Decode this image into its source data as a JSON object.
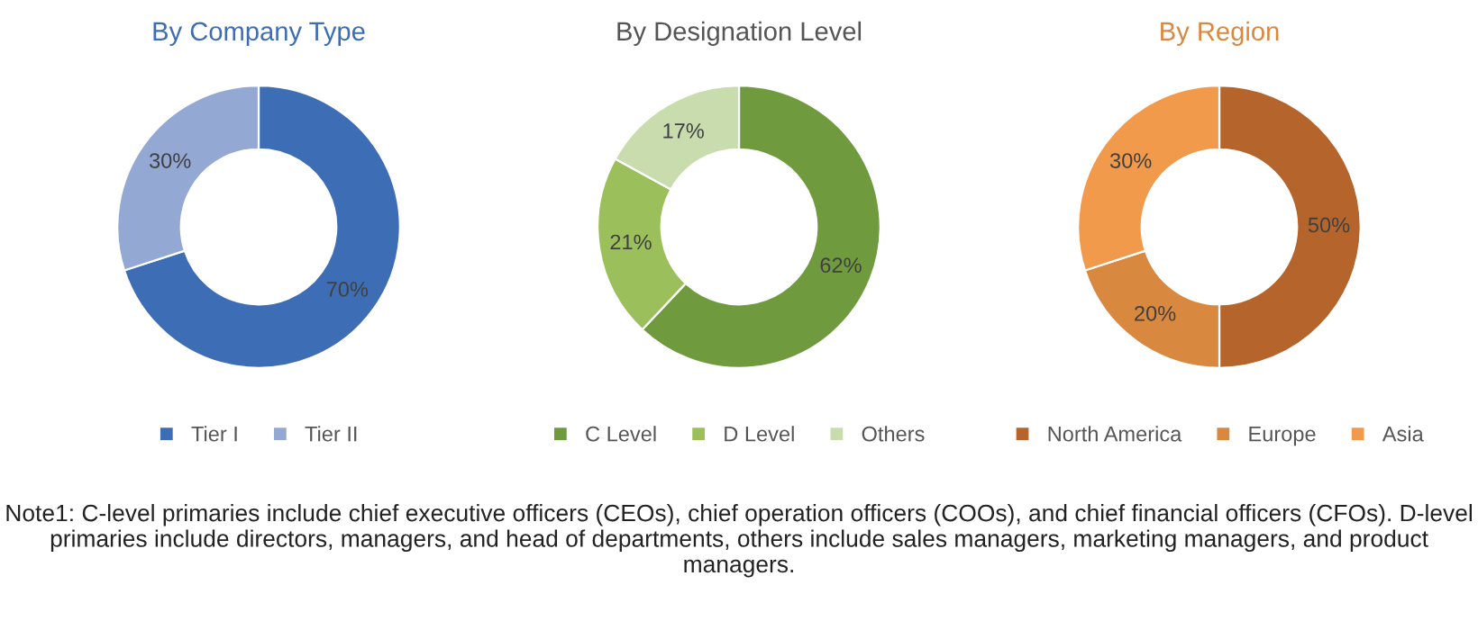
{
  "chart_data": [
    {
      "type": "donut",
      "title": "By Company Type",
      "categories": [
        "Tier I",
        "Tier II"
      ],
      "values": [
        70,
        30
      ],
      "colors": [
        "#3d6db5",
        "#93a9d3"
      ],
      "value_labels": [
        "70%",
        "30%"
      ],
      "legend": "bottom"
    },
    {
      "type": "donut",
      "title": "By Designation Level",
      "categories": [
        "C Level",
        "D Level",
        "Others"
      ],
      "values": [
        62,
        21,
        17
      ],
      "colors": [
        "#6f9a3e",
        "#9bbf5a",
        "#c8dcae"
      ],
      "value_labels": [
        "62%",
        "21%",
        "17%"
      ],
      "legend": "bottom"
    },
    {
      "type": "donut",
      "title": "By Region",
      "categories": [
        "North America",
        "Europe",
        "Asia"
      ],
      "values": [
        50,
        20,
        30
      ],
      "colors": [
        "#b5652b",
        "#d98840",
        "#f29a4c"
      ],
      "value_labels": [
        "50%",
        "20%",
        "30%"
      ],
      "legend": "bottom",
      "annotations": [
        "Note1: C-level primaries include chief executive officers (CEOs), chief operation officers (COOs), and chief financial officers (CFOs). D-level primaries include directors, managers, and head of departments, others include sales managers, marketing managers, and product managers."
      ]
    }
  ]
}
